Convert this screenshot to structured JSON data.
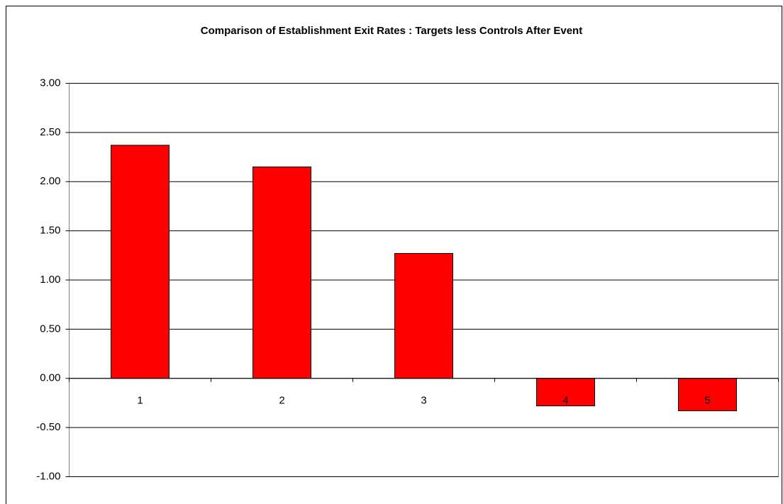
{
  "chart_data": {
    "type": "bar",
    "title": "Comparison of Establishment Exit Rates :  Targets less Controls After Event",
    "categories": [
      "1",
      "2",
      "3",
      "4",
      "5"
    ],
    "values": [
      2.37,
      2.15,
      1.27,
      -0.28,
      -0.33
    ],
    "color": "#ff0000",
    "ylim": [
      -1,
      3
    ],
    "yticks": [
      {
        "value": -1,
        "label": "-1.00"
      },
      {
        "value": -0.5,
        "label": "-0.50"
      },
      {
        "value": 0,
        "label": "0.00"
      },
      {
        "value": 0.5,
        "label": "0.50"
      },
      {
        "value": 1,
        "label": "1.00"
      },
      {
        "value": 1.5,
        "label": "1.50"
      },
      {
        "value": 2,
        "label": "2.00"
      },
      {
        "value": 2.5,
        "label": "2.50"
      },
      {
        "value": 3,
        "label": "3.00"
      }
    ],
    "grid": true
  }
}
